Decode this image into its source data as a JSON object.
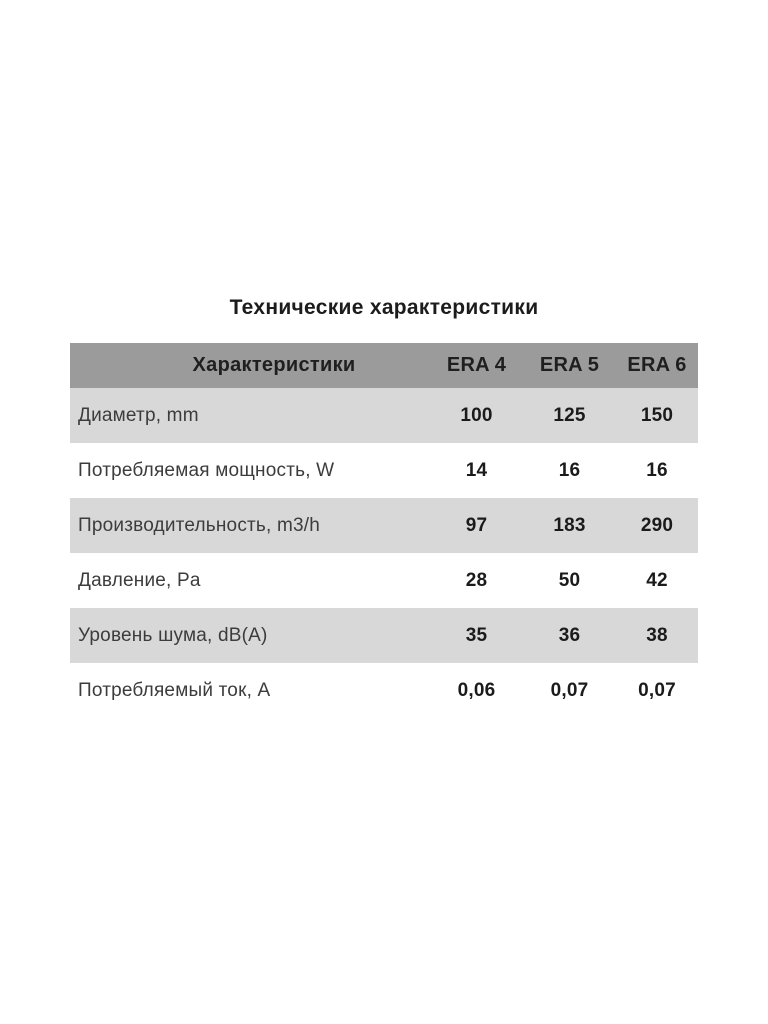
{
  "title": "Технические характеристики",
  "table": {
    "header": {
      "label": "Характеристики",
      "columns": [
        "ERA 4",
        "ERA 5",
        "ERA 6"
      ]
    },
    "rows": [
      {
        "label": "Диаметр, mm",
        "values": [
          "100",
          "125",
          "150"
        ]
      },
      {
        "label": "Потребляемая мощность, W",
        "values": [
          "14",
          "16",
          "16"
        ]
      },
      {
        "label": "Производительность, m3/h",
        "values": [
          "97",
          "183",
          "290"
        ]
      },
      {
        "label": "Давление, Pa",
        "values": [
          "28",
          "50",
          "42"
        ]
      },
      {
        "label": "Уровень шума, dB(A)",
        "values": [
          "35",
          "36",
          "38"
        ]
      },
      {
        "label": "Потребляемый ток, A",
        "values": [
          "0,06",
          "0,07",
          "0,07"
        ]
      }
    ],
    "colors": {
      "header_bg": "#9b9b9b",
      "row_alt_bg": "#d8d8d8",
      "row_bg": "#ffffff",
      "header_text": "#1f1f1f",
      "label_text": "#3c3c3c",
      "value_text": "#1b1b1b"
    }
  },
  "chart_data": {
    "type": "table",
    "title": "Технические характеристики",
    "columns": [
      "Характеристики",
      "ERA 4",
      "ERA 5",
      "ERA 6"
    ],
    "rows": [
      [
        "Диаметр, mm",
        "100",
        "125",
        "150"
      ],
      [
        "Потребляемая мощность, W",
        "14",
        "16",
        "16"
      ],
      [
        "Производительность, m3/h",
        "97",
        "183",
        "290"
      ],
      [
        "Давление, Pa",
        "28",
        "50",
        "42"
      ],
      [
        "Уровень шума, dB(A)",
        "35",
        "36",
        "38"
      ],
      [
        "Потребляемый ток, A",
        "0,06",
        "0,07",
        "0,07"
      ]
    ]
  }
}
